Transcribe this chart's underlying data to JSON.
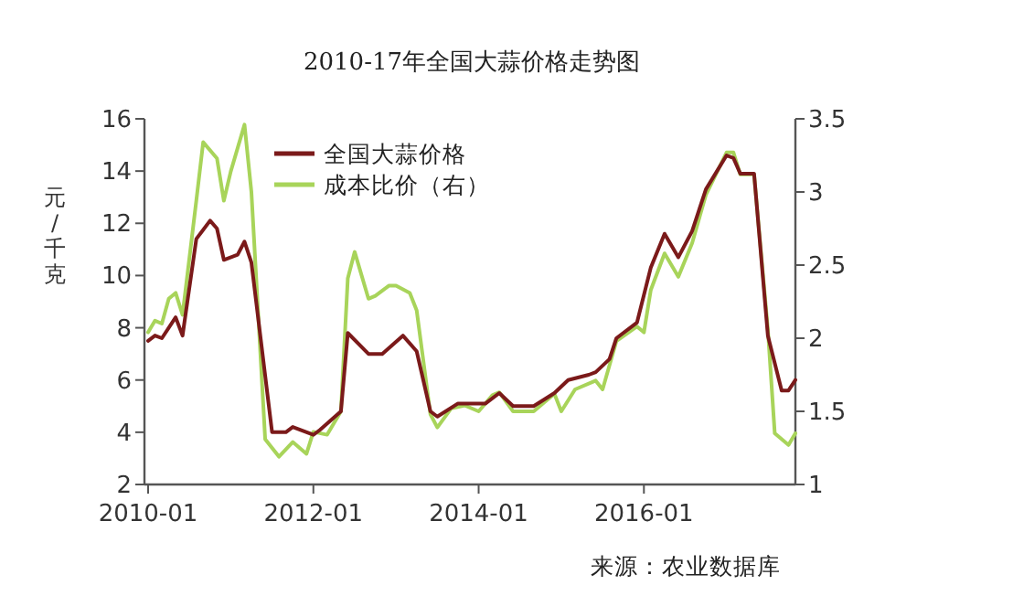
{
  "chart_data": {
    "type": "line",
    "title": "2010-17年全国大蒜价格走势图",
    "ylabel": "元/千克",
    "annotations": [
      "来源：农业数据库"
    ],
    "xlim": [
      "2010-01",
      "2017-11"
    ],
    "xticks": [
      "2010-01",
      "2012-01",
      "2014-01",
      "2016-01"
    ],
    "ylim": [
      2,
      16
    ],
    "yticks": [
      2,
      4,
      6,
      8,
      10,
      12,
      14,
      16
    ],
    "y2lim": [
      1,
      3.5
    ],
    "y2ticks": [
      1,
      1.5,
      2,
      2.5,
      3,
      3.5
    ],
    "legend": "top left",
    "series": [
      {
        "name": "全国大蒜价格",
        "color": "#7b1a1a",
        "x": [
          "2010-01",
          "2010-02",
          "2010-03",
          "2010-05",
          "2010-06",
          "2010-08",
          "2010-10",
          "2010-11",
          "2010-12",
          "2011-02",
          "2011-03",
          "2011-04",
          "2011-07",
          "2011-09",
          "2011-10",
          "2012-01",
          "2012-02",
          "2012-05",
          "2012-06",
          "2012-09",
          "2012-11",
          "2013-02",
          "2013-04",
          "2013-06",
          "2013-07",
          "2013-10",
          "2014-02",
          "2014-04",
          "2014-06",
          "2014-09",
          "2014-12",
          "2015-02",
          "2015-05",
          "2015-06",
          "2015-08",
          "2015-09",
          "2015-12",
          "2016-02",
          "2016-04",
          "2016-06",
          "2016-08",
          "2016-10",
          "2017-01",
          "2017-02",
          "2017-03",
          "2017-05",
          "2017-07",
          "2017-09",
          "2017-10",
          "2017-11"
        ],
        "values": [
          7.5,
          7.7,
          7.6,
          8.4,
          7.7,
          11.4,
          12.1,
          11.8,
          10.6,
          10.8,
          11.3,
          10.5,
          4.0,
          4.0,
          4.2,
          3.9,
          4.1,
          4.8,
          7.8,
          7.0,
          7.0,
          7.7,
          7.1,
          4.8,
          4.6,
          5.1,
          5.1,
          5.5,
          5.0,
          5.0,
          5.5,
          6.0,
          6.2,
          6.3,
          6.8,
          7.6,
          8.2,
          10.3,
          11.6,
          10.7,
          11.7,
          13.3,
          14.6,
          14.5,
          13.9,
          13.9,
          7.7,
          5.6,
          5.6,
          6.0
        ]
      },
      {
        "name": "成本比价（右）",
        "color": "#a8d45a",
        "axis": "y2",
        "x": [
          "2010-01",
          "2010-02",
          "2010-03",
          "2010-04",
          "2010-05",
          "2010-06",
          "2010-08",
          "2010-09",
          "2010-11",
          "2010-12",
          "2011-01",
          "2011-03",
          "2011-04",
          "2011-06",
          "2011-08",
          "2011-10",
          "2011-12",
          "2012-01",
          "2012-03",
          "2012-05",
          "2012-06",
          "2012-07",
          "2012-09",
          "2012-10",
          "2012-12",
          "2013-01",
          "2013-03",
          "2013-04",
          "2013-06",
          "2013-07",
          "2013-09",
          "2013-11",
          "2014-01",
          "2014-03",
          "2014-04",
          "2014-06",
          "2014-09",
          "2014-12",
          "2015-01",
          "2015-03",
          "2015-06",
          "2015-07",
          "2015-09",
          "2015-12",
          "2016-01",
          "2016-02",
          "2016-04",
          "2016-06",
          "2016-08",
          "2016-10",
          "2017-01",
          "2017-02",
          "2017-03",
          "2017-05",
          "2017-07",
          "2017-08",
          "2017-10",
          "2017-11"
        ],
        "values": [
          2.04,
          2.12,
          2.1,
          2.27,
          2.31,
          2.16,
          2.94,
          3.34,
          3.23,
          2.94,
          3.14,
          3.46,
          3.0,
          1.31,
          1.19,
          1.29,
          1.21,
          1.36,
          1.34,
          1.5,
          2.41,
          2.59,
          2.27,
          2.29,
          2.36,
          2.36,
          2.31,
          2.19,
          1.48,
          1.39,
          1.52,
          1.54,
          1.5,
          1.61,
          1.63,
          1.5,
          1.5,
          1.62,
          1.5,
          1.65,
          1.71,
          1.65,
          1.98,
          2.08,
          2.04,
          2.33,
          2.58,
          2.42,
          2.65,
          2.98,
          3.27,
          3.27,
          3.12,
          3.12,
          2.06,
          1.35,
          1.27,
          1.35
        ]
      }
    ]
  }
}
